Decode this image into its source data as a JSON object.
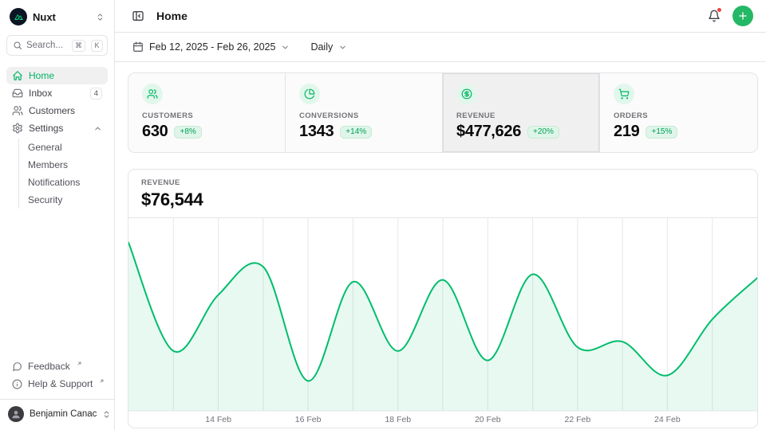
{
  "app": {
    "primary_color": "#00b563",
    "brand_color": "#00dc82"
  },
  "sidebar": {
    "brand": {
      "name": "Nuxt"
    },
    "search": {
      "placeholder": "Search...",
      "shortcut": [
        "⌘",
        "K"
      ]
    },
    "items": [
      {
        "label": "Home",
        "icon": "home-icon",
        "active": true
      },
      {
        "label": "Inbox",
        "icon": "inbox-icon",
        "badge": "4"
      },
      {
        "label": "Customers",
        "icon": "users-icon"
      },
      {
        "label": "Settings",
        "icon": "gear-icon",
        "expanded": true
      }
    ],
    "settings_children": [
      {
        "label": "General"
      },
      {
        "label": "Members"
      },
      {
        "label": "Notifications"
      },
      {
        "label": "Security"
      }
    ],
    "footer_items": [
      {
        "label": "Feedback",
        "icon": "message-bubble-icon",
        "external": true
      },
      {
        "label": "Help & Support",
        "icon": "info-circle-icon",
        "external": true
      }
    ],
    "user": {
      "name": "Benjamin Canac"
    }
  },
  "header": {
    "title": "Home",
    "notifications_unread": true
  },
  "toolbar": {
    "date_range": "Feb 12, 2025 - Feb 26, 2025",
    "period": "Daily"
  },
  "stats": [
    {
      "label": "CUSTOMERS",
      "value": "630",
      "delta": "+8%",
      "icon": "users-icon"
    },
    {
      "label": "CONVERSIONS",
      "value": "1343",
      "delta": "+14%",
      "icon": "pie-chart-icon"
    },
    {
      "label": "REVENUE",
      "value": "$477,626",
      "delta": "+20%",
      "icon": "circle-dollar-icon",
      "selected": true
    },
    {
      "label": "ORDERS",
      "value": "219",
      "delta": "+15%",
      "icon": "cart-icon"
    }
  ],
  "chart_panel": {
    "label": "REVENUE",
    "value": "$76,544"
  },
  "chart_data": {
    "type": "area",
    "title": "Revenue (daily)",
    "x": [
      "12 Feb",
      "13 Feb",
      "14 Feb",
      "15 Feb",
      "16 Feb",
      "17 Feb",
      "18 Feb",
      "19 Feb",
      "20 Feb",
      "21 Feb",
      "22 Feb",
      "23 Feb",
      "24 Feb",
      "25 Feb",
      "26 Feb"
    ],
    "values": [
      90000,
      32000,
      62000,
      77000,
      16000,
      69000,
      32000,
      70000,
      27000,
      73000,
      34000,
      37000,
      19000,
      49000,
      71000
    ],
    "x_tick_labels": [
      "14 Feb",
      "16 Feb",
      "18 Feb",
      "20 Feb",
      "22 Feb",
      "24 Feb"
    ],
    "ylim": [
      0,
      103000
    ],
    "grid": "vertical",
    "legend": false,
    "line_color": "#00bd6b",
    "area_color": "rgba(0,189,107,0.09)",
    "grid_color": "#e7e7ea",
    "tick_color": "#71717a"
  }
}
